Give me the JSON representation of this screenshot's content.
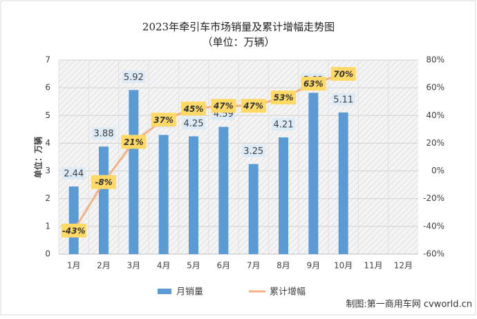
{
  "chart_data": {
    "type": "bar_line",
    "title": "2023年牵引车市场销量及累计增幅走势图",
    "subtitle": "（单位：万辆）",
    "y_axis_label": "单位：万辆",
    "footer": "制图:第一商用车网 cvworld.cn",
    "categories": [
      "1月",
      "2月",
      "3月",
      "4月",
      "5月",
      "6月",
      "7月",
      "8月",
      "9月",
      "10月",
      "11月",
      "12月"
    ],
    "series": [
      {
        "name": "月销量",
        "color": "#5b9bd5",
        "kind": "bar",
        "values": [
          2.44,
          3.88,
          5.92,
          4.3,
          4.25,
          4.59,
          3.25,
          4.21,
          5.82,
          5.11,
          null,
          null
        ]
      },
      {
        "name": "累计增幅",
        "color": "#f4b183",
        "kind": "line",
        "axis": "y2",
        "values": [
          -43,
          -8,
          21,
          37,
          45,
          47,
          47,
          53,
          63,
          70,
          null,
          null
        ],
        "value_labels": [
          "-43%",
          "-8%",
          "21%",
          "37%",
          "45%",
          "47%",
          "47%",
          "53%",
          "63%",
          "70%",
          null,
          null
        ]
      }
    ],
    "ylim": [
      0,
      7
    ],
    "yticks": [
      0,
      1,
      2,
      3,
      4,
      5,
      6,
      7
    ],
    "y2lim": [
      -60,
      80
    ],
    "y2ticks": [
      {
        "value": -60,
        "label": "-60%"
      },
      {
        "value": -40,
        "label": "-40%"
      },
      {
        "value": -20,
        "label": "-20%"
      },
      {
        "value": 0,
        "label": "0%"
      },
      {
        "value": 20,
        "label": "20%"
      },
      {
        "value": 40,
        "label": "40%"
      },
      {
        "value": 60,
        "label": "60%"
      },
      {
        "value": 80,
        "label": "80%"
      }
    ],
    "grid": true
  }
}
